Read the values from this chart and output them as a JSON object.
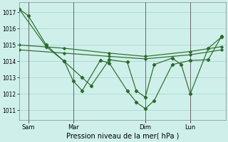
{
  "background_color": "#cff0ea",
  "grid_color": "#aad8d0",
  "line_color": "#2d6a2d",
  "title": "Pression niveau de la mer( hPa )",
  "ylabel_ticks": [
    1011,
    1012,
    1013,
    1014,
    1015,
    1016,
    1017
  ],
  "ylim": [
    1010.4,
    1017.6
  ],
  "x_tick_labels": [
    "Sam",
    "Mar",
    "Dim",
    "Lun"
  ],
  "x_tick_positions": [
    12,
    72,
    168,
    228
  ],
  "xlim": [
    0,
    275
  ],
  "vline_positions": [
    12,
    72,
    168,
    228
  ],
  "series1_x": [
    0,
    12,
    36,
    60,
    72,
    84,
    108,
    120,
    144,
    156,
    168,
    180,
    204,
    228,
    252,
    270
  ],
  "series1_y": [
    1017.2,
    1016.8,
    1015.0,
    1014.0,
    1012.8,
    1012.2,
    1014.05,
    1013.9,
    1012.2,
    1011.5,
    1011.1,
    1011.6,
    1013.8,
    1014.05,
    1014.1,
    1015.55
  ],
  "series2_x": [
    0,
    36,
    60,
    84,
    96,
    120,
    144,
    156,
    168,
    180,
    204,
    216,
    228,
    252,
    270
  ],
  "series2_y": [
    1017.2,
    1014.9,
    1014.0,
    1013.0,
    1012.5,
    1014.1,
    1013.95,
    1012.2,
    1011.8,
    1013.8,
    1014.2,
    1013.8,
    1012.0,
    1014.8,
    1015.5
  ],
  "series3_x": [
    0,
    60,
    120,
    168,
    228,
    270
  ],
  "series3_y": [
    1015.0,
    1014.8,
    1014.5,
    1014.3,
    1014.6,
    1014.9
  ],
  "series4_x": [
    0,
    60,
    120,
    168,
    228,
    270
  ],
  "series4_y": [
    1014.7,
    1014.5,
    1014.3,
    1014.15,
    1014.4,
    1014.7
  ]
}
